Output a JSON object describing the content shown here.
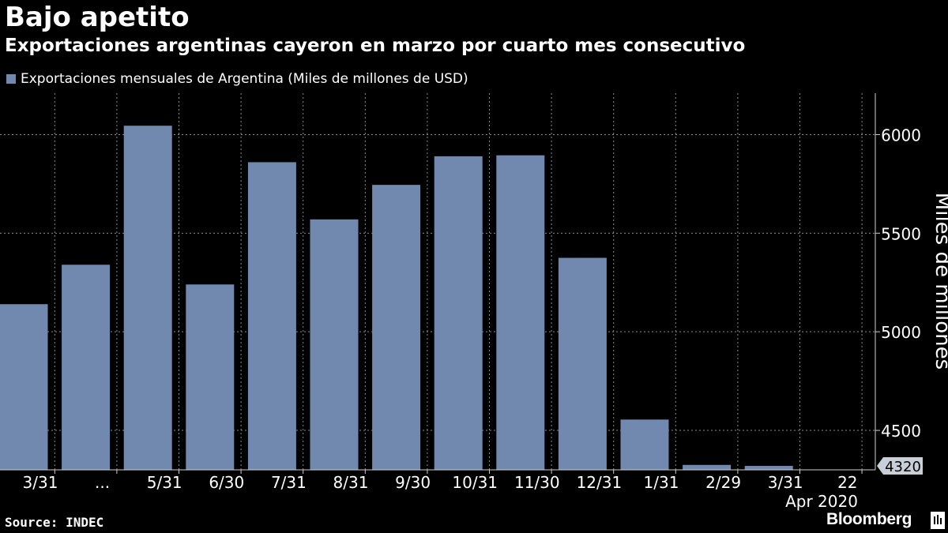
{
  "title": "Bajo apetito",
  "subtitle": "Exportaciones argentinas cayeron en marzo por cuarto mes consecutivo",
  "source": "Source: INDEC",
  "brand": "Bloomberg",
  "colors": {
    "bar": "#7189ae",
    "grid": "#8a8a8a",
    "text": "#ffffff",
    "background": "#000000"
  },
  "chart_data": {
    "type": "bar",
    "categories": [
      "3/31",
      "...",
      "5/31",
      "6/30",
      "7/31",
      "8/31",
      "9/30",
      "10/31",
      "11/30",
      "12/31",
      "1/31",
      "2/29",
      "3/31",
      "22"
    ],
    "x_sublabel": "Apr 2020",
    "series": [
      {
        "name": "Exportaciones mensuales de Argentina (Miles de millones de USD)",
        "values": [
          5140,
          5340,
          6045,
          5240,
          5860,
          5570,
          5745,
          5890,
          5895,
          5375,
          4555,
          4325,
          4320,
          null
        ]
      }
    ],
    "ylabel": "Miles de millones",
    "yticks": [
      4500,
      5000,
      5500,
      6000
    ],
    "ylim": [
      4300,
      6210
    ],
    "last_value_label": "4320",
    "axis_position": "right",
    "grid": true
  }
}
